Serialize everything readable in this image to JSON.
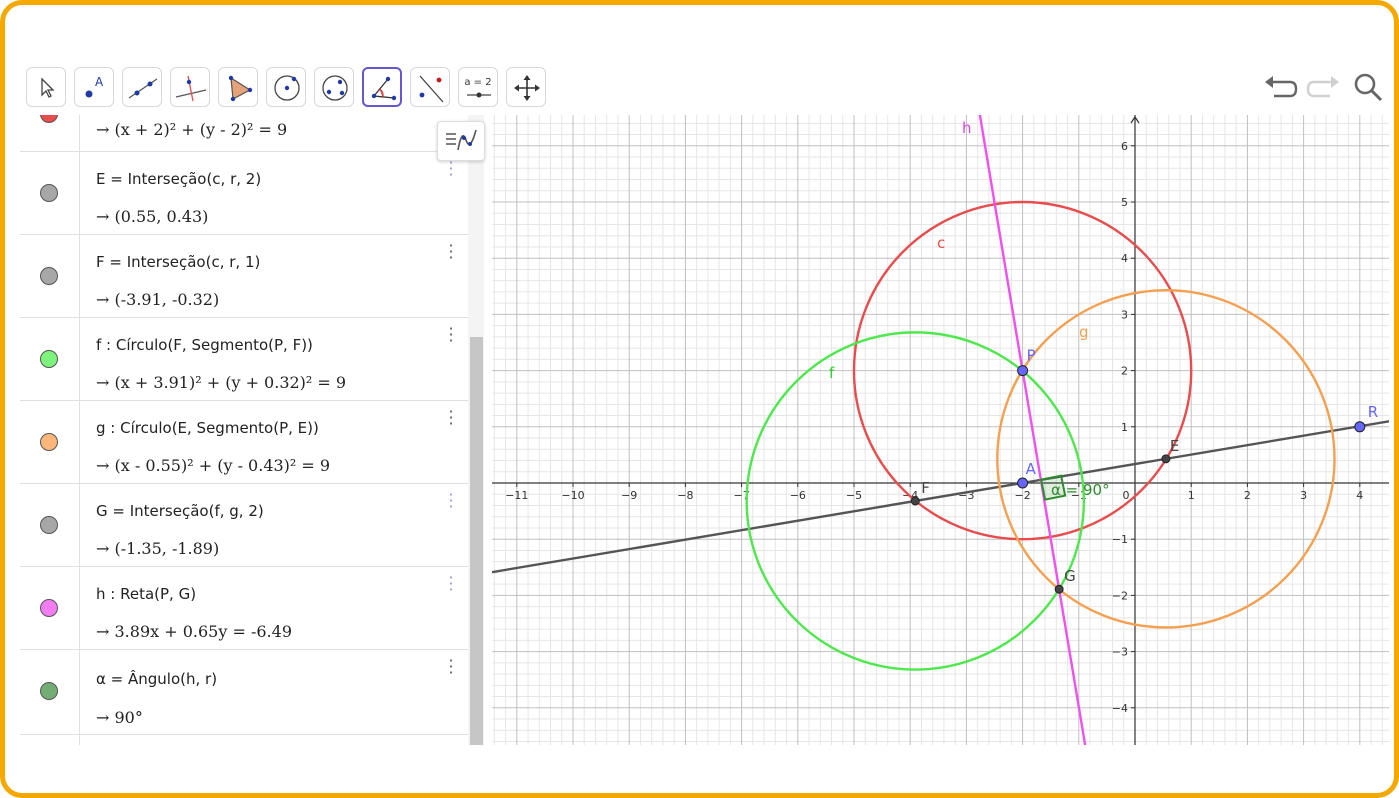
{
  "toolbar": {
    "tools": [
      {
        "name": "move-tool",
        "icon": "cursor-arrow-icon",
        "label": ""
      },
      {
        "name": "point-tool",
        "icon": "point-a-icon",
        "label": "A"
      },
      {
        "name": "line-tool",
        "icon": "line-two-points-icon",
        "label": ""
      },
      {
        "name": "perpendicular-line-tool",
        "icon": "perpendicular-line-icon",
        "label": ""
      },
      {
        "name": "polygon-tool",
        "icon": "polygon-icon",
        "label": ""
      },
      {
        "name": "circle-center-point-tool",
        "icon": "circle-center-point-icon",
        "label": ""
      },
      {
        "name": "ellipse-tool",
        "icon": "ellipse-icon",
        "label": ""
      },
      {
        "name": "angle-tool",
        "icon": "angle-icon",
        "label": ""
      },
      {
        "name": "reflect-tool",
        "icon": "reflect-about-line-icon",
        "label": ""
      },
      {
        "name": "slider-tool",
        "icon": "slider-icon",
        "label": "a = 2"
      },
      {
        "name": "move-graphics-view-tool",
        "icon": "move-graphics-icon",
        "label": ""
      }
    ],
    "active_tool": "angle-tool",
    "undo_icon": "undo-icon",
    "redo_icon": "redo-icon",
    "search_icon": "search-icon"
  },
  "algebra": {
    "rows": [
      {
        "id": "c",
        "color": "#e84c4c",
        "definition": "",
        "value": "→  (x + 2)² + (y - 2)² = 9"
      },
      {
        "id": "E",
        "color": "#a7a7a7",
        "definition": "E  =  Interseção(c, r, 2)",
        "value": "→  (0.55, 0.43)"
      },
      {
        "id": "F",
        "color": "#a7a7a7",
        "definition": "F  =  Interseção(c, r, 1)",
        "value": "→  (-3.91, -0.32)"
      },
      {
        "id": "f",
        "color": "#7df57d",
        "definition": "f : Círculo(F, Segmento(P, F))",
        "value": "→  (x + 3.91)² + (y + 0.32)² = 9"
      },
      {
        "id": "g",
        "color": "#fbb67a",
        "definition": "g : Círculo(E, Segmento(P, E))",
        "value": "→  (x - 0.55)² + (y - 0.43)² = 9"
      },
      {
        "id": "G",
        "color": "#a7a7a7",
        "definition": "G  =  Interseção(f, g, 2)",
        "value": "→  (-1.35, -1.89)"
      },
      {
        "id": "h",
        "color": "#f27df2",
        "definition": "h : Reta(P, G)",
        "value": "→  3.89x + 0.65y = -6.49"
      },
      {
        "id": "alpha",
        "color": "#74ad74",
        "definition": "α  =  Ângulo(h, r)",
        "value": "→  90°"
      }
    ]
  },
  "graphics": {
    "x_ticks": [
      "−11",
      "−10",
      "−9",
      "−8",
      "−7",
      "−6",
      "−5",
      "−4",
      "−3",
      "−2",
      "−1",
      "0",
      "1",
      "2",
      "3",
      "4"
    ],
    "y_ticks": [
      "6",
      "5",
      "4",
      "3",
      "2",
      "1",
      "−1",
      "−2",
      "−3",
      "−4"
    ],
    "labels": {
      "h": "h",
      "c": "c",
      "g": "g",
      "f": "f",
      "P": "P",
      "A": "A",
      "E": "E",
      "F": "F",
      "G": "G",
      "R": "R",
      "alpha": "α = 90°"
    },
    "colors": {
      "c": "#e84c4c",
      "f": "#4ce84c",
      "g": "#f5a050",
      "h": "#f050f0",
      "r": "#555555",
      "point_blue": "#6666ff",
      "point_dark": "#333333",
      "angle": "#2e8b2e"
    },
    "points": [
      {
        "id": "P",
        "x": -2,
        "y": 2
      },
      {
        "id": "A",
        "x": -2,
        "y": 0
      },
      {
        "id": "E",
        "x": 0.55,
        "y": 0.43
      },
      {
        "id": "F",
        "x": -3.91,
        "y": -0.32
      },
      {
        "id": "G",
        "x": -1.35,
        "y": -1.89
      },
      {
        "id": "R",
        "x": 4,
        "y": 1
      }
    ]
  }
}
